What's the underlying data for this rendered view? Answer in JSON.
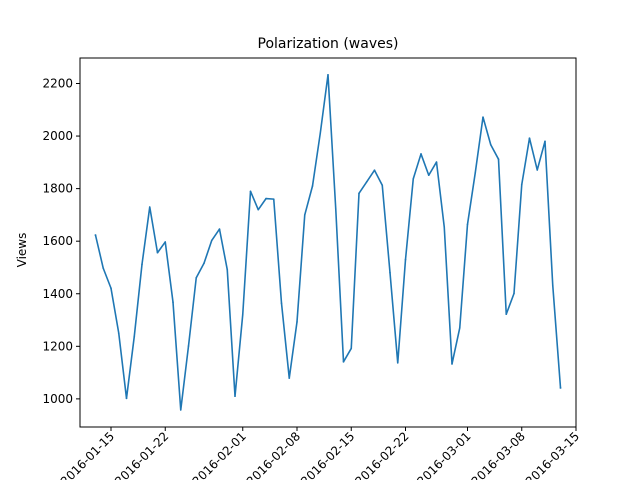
{
  "chart_data": {
    "type": "line",
    "title": "Polarization (waves)",
    "xlabel": "",
    "ylabel": "Views",
    "xlim": [
      "2016-01-11",
      "2016-03-15"
    ],
    "ylim": [
      893,
      2297
    ],
    "yticks": [
      1000,
      1200,
      1400,
      1600,
      1800,
      2000,
      2200
    ],
    "xtick_dates": [
      "2016-01-15",
      "2016-01-22",
      "2016-02-01",
      "2016-02-08",
      "2016-02-15",
      "2016-02-22",
      "2016-03-01",
      "2016-03-08",
      "2016-03-15"
    ],
    "xtick_labels": [
      "2016-01-15",
      "2016-01-22",
      "2016-02-01",
      "2016-02-08",
      "2016-02-15",
      "2016-02-22",
      "2016-03-01",
      "2016-03-08",
      "2016-03-15"
    ],
    "grid": false,
    "color": "#1f77b4",
    "series": [
      {
        "name": "",
        "x": [
          "2016-01-13",
          "2016-01-14",
          "2016-01-15",
          "2016-01-16",
          "2016-01-17",
          "2016-01-18",
          "2016-01-19",
          "2016-01-20",
          "2016-01-21",
          "2016-01-22",
          "2016-01-23",
          "2016-01-24",
          "2016-01-25",
          "2016-01-26",
          "2016-01-27",
          "2016-01-28",
          "2016-01-29",
          "2016-01-30",
          "2016-01-31",
          "2016-02-01",
          "2016-02-02",
          "2016-02-03",
          "2016-02-04",
          "2016-02-05",
          "2016-02-06",
          "2016-02-07",
          "2016-02-08",
          "2016-02-09",
          "2016-02-10",
          "2016-02-11",
          "2016-02-12",
          "2016-02-13",
          "2016-02-14",
          "2016-02-15",
          "2016-02-16",
          "2016-02-17",
          "2016-02-18",
          "2016-02-19",
          "2016-02-20",
          "2016-02-21",
          "2016-02-22",
          "2016-02-23",
          "2016-02-24",
          "2016-02-25",
          "2016-02-26",
          "2016-02-27",
          "2016-02-28",
          "2016-02-29",
          "2016-03-01",
          "2016-03-02",
          "2016-03-03",
          "2016-03-04",
          "2016-03-05",
          "2016-03-06",
          "2016-03-07",
          "2016-03-08",
          "2016-03-09",
          "2016-03-10",
          "2016-03-11",
          "2016-03-12"
        ],
        "values": [
          1623,
          1497,
          1421,
          1250,
          1002,
          1237,
          1512,
          1730,
          1556,
          1597,
          1368,
          958,
          1201,
          1461,
          1516,
          1603,
          1646,
          1492,
          1010,
          1321,
          1790,
          1720,
          1762,
          1760,
          1364,
          1079,
          1293,
          1700,
          1810,
          2010,
          2233,
          1723,
          1141,
          1192,
          1782,
          1826,
          1870,
          1813,
          1480,
          1137,
          1530,
          1837,
          1932,
          1851,
          1901,
          1654,
          1133,
          1270,
          1664,
          1860,
          2072,
          1967,
          1912,
          1322,
          1401,
          1815,
          1992,
          1871,
          1980,
          1432
        ]
      }
    ],
    "last_point": {
      "x": "2016-03-13",
      "value": 1042
    }
  }
}
